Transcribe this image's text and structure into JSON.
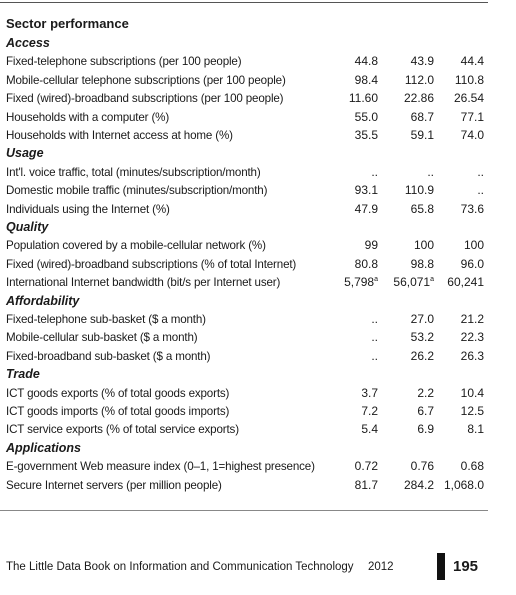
{
  "table": {
    "title": "Sector performance",
    "sections": [
      {
        "title": "Access",
        "rows": [
          {
            "label": "Fixed-telephone subscriptions (per 100 people)",
            "values": [
              "44.8",
              "43.9",
              "44.4"
            ]
          },
          {
            "label": "Mobile-cellular telephone subscriptions (per 100 people)",
            "values": [
              "98.4",
              "112.0",
              "110.8"
            ]
          },
          {
            "label": "Fixed (wired)-broadband subscriptions (per 100 people)",
            "values": [
              "11.60",
              "22.86",
              "26.54"
            ]
          },
          {
            "label": "Households with a computer (%)",
            "values": [
              "55.0",
              "68.7",
              "77.1"
            ]
          },
          {
            "label": "Households with Internet access at home (%)",
            "values": [
              "35.5",
              "59.1",
              "74.0"
            ]
          }
        ]
      },
      {
        "title": "Usage",
        "rows": [
          {
            "label": "Int'l. voice traffic, total (minutes/subscription/month)",
            "values": [
              "..",
              "..",
              ".."
            ]
          },
          {
            "label": "Domestic mobile traffic (minutes/subscription/month)",
            "values": [
              "93.1",
              "110.9",
              ".."
            ]
          },
          {
            "label": "Individuals using the Internet (%)",
            "values": [
              "47.9",
              "65.8",
              "73.6"
            ]
          }
        ]
      },
      {
        "title": "Quality",
        "rows": [
          {
            "label": "Population covered by a mobile-cellular network (%)",
            "values": [
              "99",
              "100",
              "100"
            ]
          },
          {
            "label": "Fixed (wired)-broadband subscriptions (% of total Internet)",
            "values": [
              "80.8",
              "98.8",
              "96.0"
            ]
          },
          {
            "label": "International Internet bandwidth (bit/s per Internet user)",
            "values": [
              {
                "text": "5,798",
                "sup": "a"
              },
              {
                "text": "56,071",
                "sup": "a"
              },
              "60,241"
            ]
          }
        ]
      },
      {
        "title": "Affordability",
        "rows": [
          {
            "label": "Fixed-telephone sub-basket ($ a month)",
            "values": [
              "..",
              "27.0",
              "21.2"
            ]
          },
          {
            "label": "Mobile-cellular sub-basket ($ a month)",
            "values": [
              "..",
              "53.2",
              "22.3"
            ]
          },
          {
            "label": "Fixed-broadband sub-basket ($ a month)",
            "values": [
              "..",
              "26.2",
              "26.3"
            ]
          }
        ]
      },
      {
        "title": "Trade",
        "rows": [
          {
            "label": "ICT goods exports (% of total goods exports)",
            "values": [
              "3.7",
              "2.2",
              "10.4"
            ]
          },
          {
            "label": "ICT goods imports (% of total goods imports)",
            "values": [
              "7.2",
              "6.7",
              "12.5"
            ]
          },
          {
            "label": "ICT service exports (% of total service exports)",
            "values": [
              "5.4",
              "6.9",
              "8.1"
            ]
          }
        ]
      },
      {
        "title": "Applications",
        "rows": [
          {
            "label": "E-government Web measure index (0–1, 1=highest presence)",
            "values": [
              "0.72",
              "0.76",
              "0.68"
            ]
          },
          {
            "label": "Secure Internet servers (per million people)",
            "values": [
              "81.7",
              "284.2",
              "1,068.0"
            ]
          }
        ]
      }
    ]
  },
  "footer": {
    "text": "The Little Data Book on Information and Communication Technology",
    "year": "2012",
    "page": "195"
  }
}
